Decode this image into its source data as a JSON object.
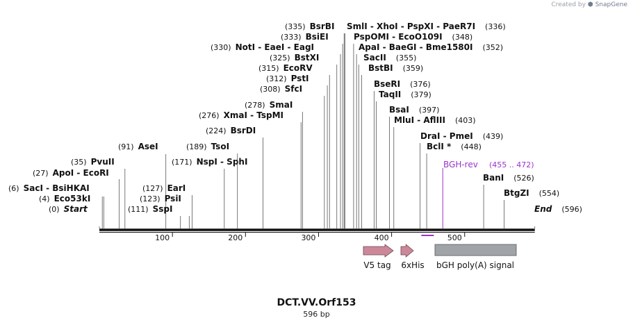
{
  "brand": {
    "prefix": "Created by",
    "name": "SnapGene"
  },
  "sequence": {
    "name": "DCT.VV.Orf153",
    "length_label": "596 bp",
    "length": 596
  },
  "axis": {
    "ticks": [
      100,
      200,
      300,
      400,
      500
    ]
  },
  "colors": {
    "line": "#555555",
    "primer": "#9933cc",
    "v5": "#cc8899",
    "his": "#cc8899",
    "polya": "#a0a4a8"
  },
  "primer": {
    "name": "BGH-rev",
    "range": "(455 .. 472)",
    "start": 455,
    "end": 472
  },
  "features": [
    {
      "name": "V5 tag",
      "start": 363,
      "end": 404
    },
    {
      "name": "6xHis",
      "start": 416,
      "end": 433
    },
    {
      "name": "bGH poly(A) signal",
      "start": 452,
      "end": 577
    }
  ],
  "sites": [
    {
      "pos": "(0)",
      "names": [
        "Start"
      ],
      "italic": true
    },
    {
      "pos": "(4)",
      "names": [
        "Eco53kI"
      ]
    },
    {
      "pos": "(6)",
      "names": [
        "SacI",
        "BsiHKAI"
      ]
    },
    {
      "pos": "(27)",
      "names": [
        "ApoI",
        "EcoRI"
      ]
    },
    {
      "pos": "(35)",
      "names": [
        "PvuII"
      ]
    },
    {
      "pos": "(91)",
      "names": [
        "AseI"
      ]
    },
    {
      "pos": "(111)",
      "names": [
        "SspI"
      ]
    },
    {
      "pos": "(123)",
      "names": [
        "PsiI"
      ]
    },
    {
      "pos": "(127)",
      "names": [
        "EarI"
      ]
    },
    {
      "pos": "(171)",
      "names": [
        "NspI",
        "SphI"
      ]
    },
    {
      "pos": "(189)",
      "names": [
        "TsoI"
      ]
    },
    {
      "pos": "(224)",
      "names": [
        "BsrDI"
      ]
    },
    {
      "pos": "(276)",
      "names": [
        "XmaI",
        "TspMI"
      ]
    },
    {
      "pos": "(278)",
      "names": [
        "SmaI"
      ]
    },
    {
      "pos": "(308)",
      "names": [
        "SfcI"
      ]
    },
    {
      "pos": "(312)",
      "names": [
        "PstI"
      ]
    },
    {
      "pos": "(315)",
      "names": [
        "EcoRV"
      ]
    },
    {
      "pos": "(325)",
      "names": [
        "BstXI"
      ]
    },
    {
      "pos": "(330)",
      "names": [
        "NotI",
        "EaeI",
        "EagI"
      ]
    },
    {
      "pos": "(333)",
      "names": [
        "BsiEI"
      ]
    },
    {
      "pos": "(335)",
      "names": [
        "BsrBI"
      ]
    },
    {
      "pos": "(336)",
      "names": [
        "SmlI",
        "XhoI",
        "PspXI",
        "PaeR7I"
      ]
    },
    {
      "pos": "(348)",
      "names": [
        "PspOMI",
        "EcoO109I"
      ]
    },
    {
      "pos": "(352)",
      "names": [
        "ApaI",
        "BaeGI",
        "Bme1580I"
      ]
    },
    {
      "pos": "(355)",
      "names": [
        "SacII"
      ]
    },
    {
      "pos": "(359)",
      "names": [
        "BstBI"
      ]
    },
    {
      "pos": "(376)",
      "names": [
        "BseRI"
      ]
    },
    {
      "pos": "(379)",
      "names": [
        "TaqII"
      ]
    },
    {
      "pos": "(397)",
      "names": [
        "BsaI"
      ]
    },
    {
      "pos": "(403)",
      "names": [
        "MluI",
        "AflIII"
      ]
    },
    {
      "pos": "(439)",
      "names": [
        "DraI",
        "PmeI"
      ]
    },
    {
      "pos": "(448)",
      "names": [
        "BclI *"
      ]
    },
    {
      "pos": "(526)",
      "names": [
        "BanI"
      ]
    },
    {
      "pos": "(554)",
      "names": [
        "BtgZI"
      ]
    },
    {
      "pos": "(596)",
      "names": [
        "End"
      ],
      "italic": true
    }
  ]
}
